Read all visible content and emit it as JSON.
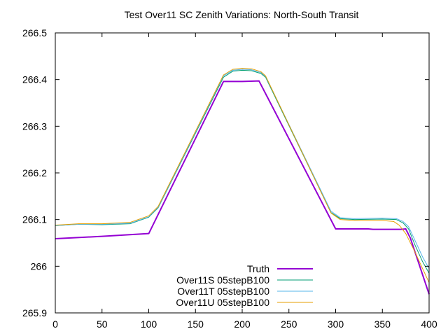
{
  "chart_data": {
    "type": "line",
    "title": "Test Over11 SC Zenith Variations: North-South Transit",
    "xlabel": "",
    "ylabel": "",
    "xlim": [
      0,
      400
    ],
    "ylim": [
      265.9,
      266.5
    ],
    "xticks": [
      0,
      50,
      100,
      150,
      200,
      250,
      300,
      350,
      400
    ],
    "yticks": [
      265.9,
      266.0,
      266.1,
      266.2,
      266.3,
      266.4,
      266.5
    ],
    "ytick_labels": [
      "265.9",
      "266",
      "266.1",
      "266.2",
      "266.3",
      "266.4",
      "266.5"
    ],
    "grid": false,
    "legend_position": "bottom-right",
    "series": [
      {
        "name": "Truth",
        "color": "#9400d3",
        "width": 2,
        "points": [
          [
            0,
            266.059
          ],
          [
            50,
            266.064
          ],
          [
            100,
            266.07
          ],
          [
            180,
            266.396
          ],
          [
            200,
            266.396
          ],
          [
            218,
            266.397
          ],
          [
            300,
            266.08
          ],
          [
            335,
            266.08
          ],
          [
            340,
            266.079
          ],
          [
            370,
            266.079
          ],
          [
            375,
            266.08
          ],
          [
            380,
            266.06
          ],
          [
            390,
            266.0
          ],
          [
            400,
            265.94
          ]
        ]
      },
      {
        "name": "Over11S 05stepB100",
        "color": "#009e73",
        "width": 1,
        "points": [
          [
            0,
            266.087
          ],
          [
            25,
            266.09
          ],
          [
            50,
            266.089
          ],
          [
            80,
            266.091
          ],
          [
            100,
            266.105
          ],
          [
            110,
            266.125
          ],
          [
            180,
            266.405
          ],
          [
            190,
            266.418
          ],
          [
            200,
            266.42
          ],
          [
            210,
            266.419
          ],
          [
            220,
            266.413
          ],
          [
            225,
            266.405
          ],
          [
            295,
            266.115
          ],
          [
            305,
            266.102
          ],
          [
            320,
            266.1
          ],
          [
            350,
            266.101
          ],
          [
            365,
            266.1
          ],
          [
            372,
            266.093
          ],
          [
            378,
            266.08
          ],
          [
            385,
            266.045
          ],
          [
            393,
            266.01
          ],
          [
            400,
            265.985
          ]
        ]
      },
      {
        "name": "Over11T 05stepB100",
        "color": "#56b4e9",
        "width": 1,
        "points": [
          [
            0,
            266.087
          ],
          [
            25,
            266.09
          ],
          [
            50,
            266.09
          ],
          [
            80,
            266.092
          ],
          [
            100,
            266.106
          ],
          [
            110,
            266.126
          ],
          [
            180,
            266.408
          ],
          [
            190,
            266.42
          ],
          [
            200,
            266.422
          ],
          [
            210,
            266.421
          ],
          [
            220,
            266.415
          ],
          [
            225,
            266.407
          ],
          [
            295,
            266.118
          ],
          [
            305,
            266.104
          ],
          [
            320,
            266.102
          ],
          [
            350,
            266.103
          ],
          [
            365,
            266.102
          ],
          [
            372,
            266.096
          ],
          [
            378,
            266.085
          ],
          [
            385,
            266.055
          ],
          [
            393,
            266.02
          ],
          [
            400,
            265.995
          ]
        ]
      },
      {
        "name": "Over11U 05stepB100",
        "color": "#e69f00",
        "width": 1,
        "points": [
          [
            0,
            266.088
          ],
          [
            25,
            266.091
          ],
          [
            50,
            266.091
          ],
          [
            80,
            266.094
          ],
          [
            100,
            266.108
          ],
          [
            110,
            266.128
          ],
          [
            180,
            266.41
          ],
          [
            190,
            266.422
          ],
          [
            200,
            266.424
          ],
          [
            210,
            266.423
          ],
          [
            220,
            266.417
          ],
          [
            225,
            266.408
          ],
          [
            295,
            266.114
          ],
          [
            305,
            266.1
          ],
          [
            320,
            266.098
          ],
          [
            350,
            266.098
          ],
          [
            362,
            266.096
          ],
          [
            368,
            266.088
          ],
          [
            375,
            266.07
          ],
          [
            385,
            266.03
          ],
          [
            393,
            265.995
          ],
          [
            400,
            265.965
          ]
        ]
      }
    ]
  }
}
